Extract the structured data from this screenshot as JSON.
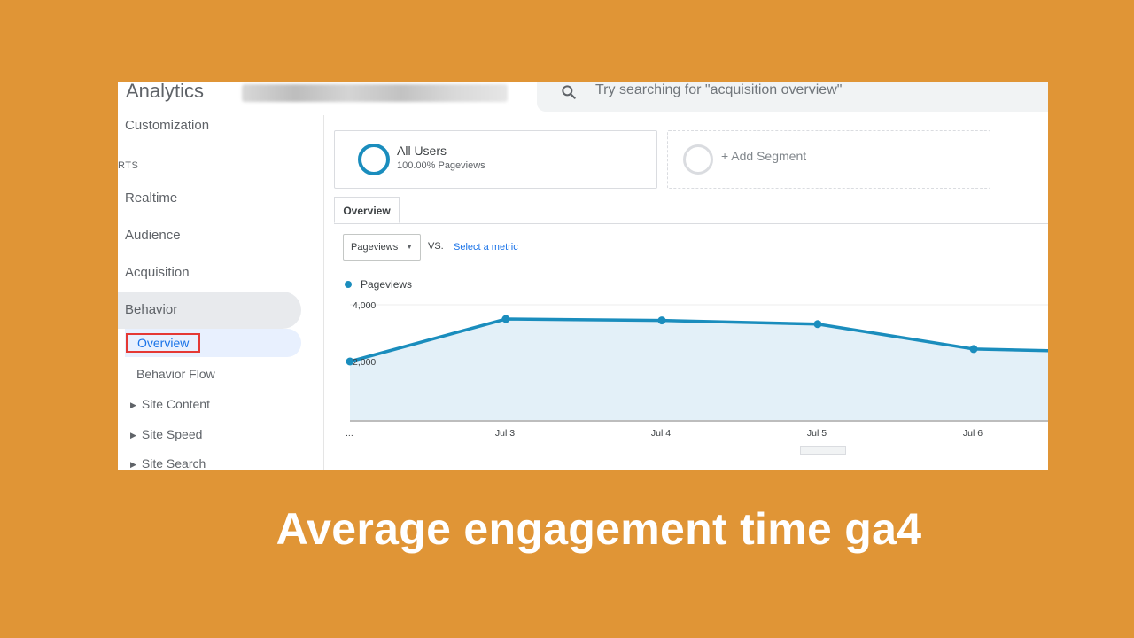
{
  "topbar": {
    "app_title": "Analytics",
    "search_placeholder": "Try searching for \"acquisition overview\""
  },
  "sidebar": {
    "customization": "Customization",
    "section_label": "RTS",
    "items": [
      "Realtime",
      "Audience",
      "Acquisition",
      "Behavior"
    ],
    "sub_items": [
      "Overview",
      "Behavior Flow",
      "Site Content",
      "Site Speed",
      "Site Search"
    ]
  },
  "segments": {
    "all_users": "All Users",
    "all_users_sub": "100.00% Pageviews",
    "add_segment": "+ Add Segment"
  },
  "tabs": {
    "overview": "Overview"
  },
  "metric_picker": {
    "selected": "Pageviews",
    "vs": "VS.",
    "select_metric": "Select a metric"
  },
  "chart_data": {
    "type": "area",
    "x_labels": [
      "...",
      "Jul 3",
      "Jul 4",
      "Jul 5",
      "Jul 6"
    ],
    "y_ticks": [
      "4,000",
      "2,000"
    ],
    "series": [
      {
        "name": "Pageviews",
        "values": [
          2000,
          3500,
          3450,
          3320,
          2440,
          2320
        ]
      }
    ],
    "ylim": [
      0,
      4000
    ],
    "color": "#1a8dbd",
    "fill": "#e3f0f8"
  },
  "caption": "Average engagement time ga4"
}
